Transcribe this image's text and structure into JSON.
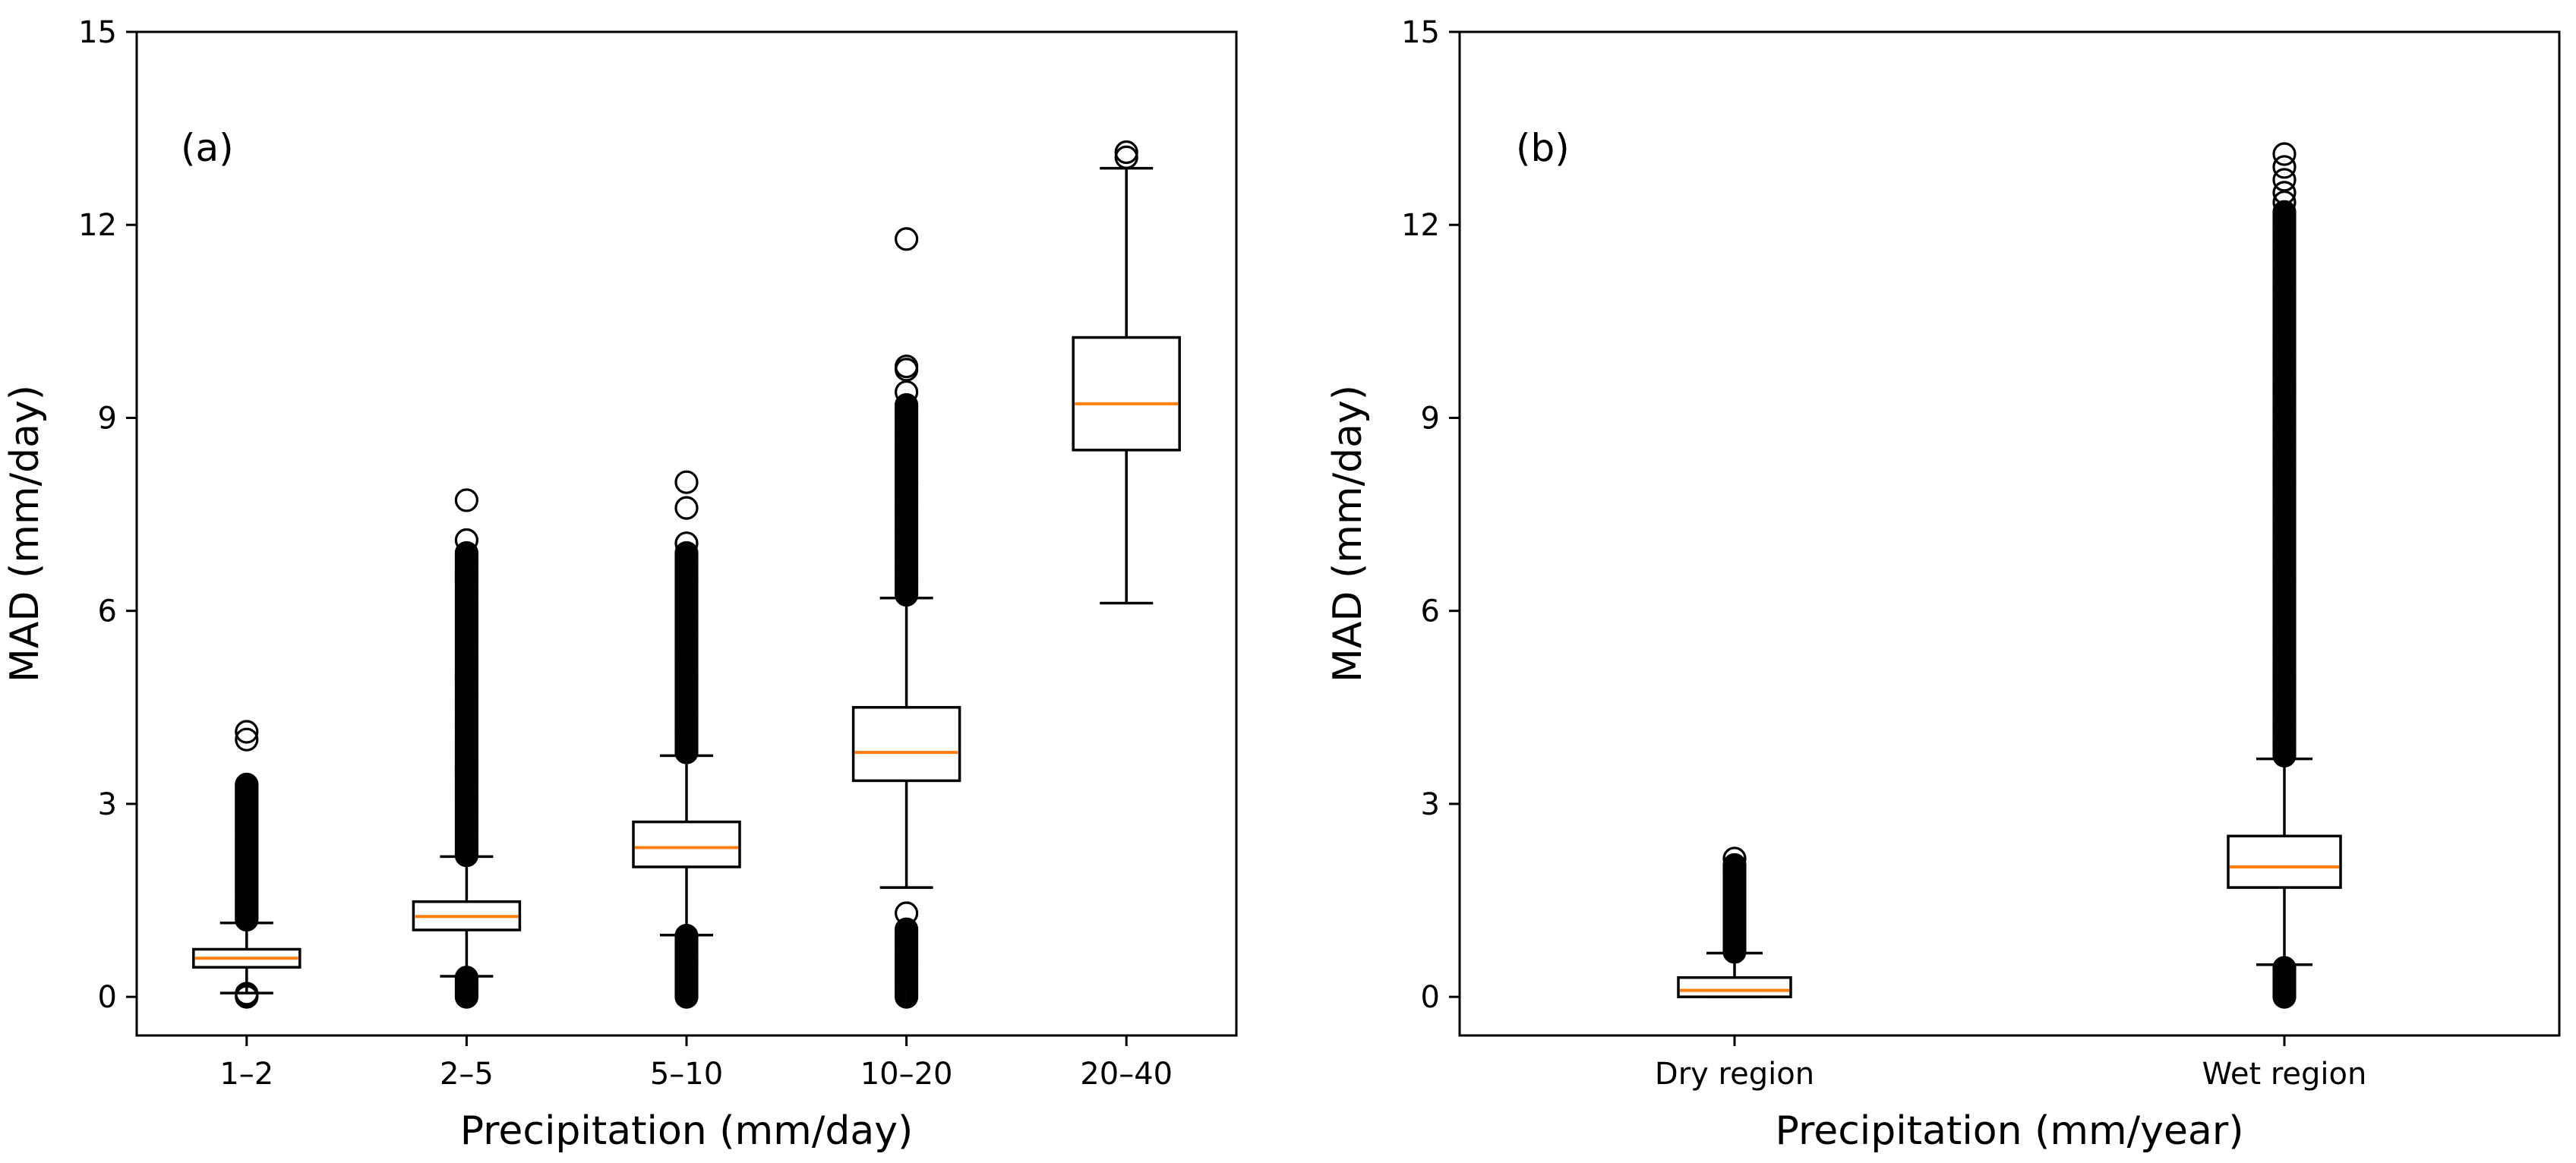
{
  "chart_data": [
    {
      "type": "box",
      "panel_label": "(a)",
      "xlabel": "Precipitation (mm/day)",
      "ylabel": "MAD (mm/day)",
      "ylim": [
        -0.6,
        15
      ],
      "yticks": [
        0,
        3,
        6,
        9,
        12,
        15
      ],
      "grid": false,
      "median_color": "#ff7f0e",
      "categories": [
        "1–2",
        "2–5",
        "5–10",
        "10–20",
        "20–40"
      ],
      "boxes": [
        {
          "category": "1–2",
          "whisker_low": 0.06,
          "q1": 0.46,
          "median": 0.6,
          "q3": 0.74,
          "whisker_high": 1.15,
          "fliers_low": [
            0.0,
            0.02,
            0.05
          ],
          "fliers_high_range": [
            1.2,
            3.3
          ],
          "fliers_high_sparse": [
            4.0,
            4.12
          ]
        },
        {
          "category": "2–5",
          "whisker_low": 0.32,
          "q1": 1.04,
          "median": 1.25,
          "q3": 1.48,
          "whisker_high": 2.18,
          "fliers_low_range": [
            0.0,
            0.3
          ],
          "fliers_high_range": [
            2.2,
            6.9
          ],
          "fliers_high_sparse": [
            7.1,
            7.72
          ]
        },
        {
          "category": "5–10",
          "whisker_low": 0.96,
          "q1": 2.02,
          "median": 2.32,
          "q3": 2.72,
          "whisker_high": 3.75,
          "fliers_low_range": [
            0.0,
            0.95
          ],
          "fliers_high_range": [
            3.8,
            6.9
          ],
          "fliers_high_sparse": [
            7.05,
            7.6,
            8.0
          ]
        },
        {
          "category": "10–20",
          "whisker_low": 1.7,
          "q1": 3.36,
          "median": 3.8,
          "q3": 4.5,
          "whisker_high": 6.2,
          "fliers_low_range": [
            0.0,
            1.05
          ],
          "fliers_low_sparse": [
            1.3
          ],
          "fliers_high_range": [
            6.25,
            9.2
          ],
          "fliers_high_sparse": [
            9.4,
            9.75,
            9.8,
            11.78
          ]
        },
        {
          "category": "20–40",
          "whisker_low": 6.12,
          "q1": 8.5,
          "median": 9.22,
          "q3": 10.25,
          "whisker_high": 12.88,
          "fliers_high_sparse": [
            13.05,
            13.13
          ]
        }
      ]
    },
    {
      "type": "box",
      "panel_label": "(b)",
      "xlabel": "Precipitation (mm/year)",
      "ylabel": "MAD (mm/day)",
      "ylim": [
        -0.6,
        15
      ],
      "yticks": [
        0,
        3,
        6,
        9,
        12,
        15
      ],
      "grid": false,
      "median_color": "#ff7f0e",
      "categories": [
        "Dry region",
        "Wet region"
      ],
      "boxes": [
        {
          "category": "Dry region",
          "whisker_low": 0.0,
          "q1": 0.0,
          "median": 0.1,
          "q3": 0.3,
          "whisker_high": 0.68,
          "fliers_high_range": [
            0.7,
            2.05
          ],
          "fliers_high_sparse": [
            2.15
          ]
        },
        {
          "category": "Wet region",
          "whisker_low": 0.5,
          "q1": 1.7,
          "median": 2.02,
          "q3": 2.5,
          "whisker_high": 3.7,
          "fliers_low_range": [
            0.0,
            0.45
          ],
          "fliers_high_range": [
            3.75,
            12.2
          ],
          "fliers_high_sparse": [
            12.35,
            12.5,
            12.7,
            12.9,
            13.1
          ]
        }
      ]
    }
  ]
}
